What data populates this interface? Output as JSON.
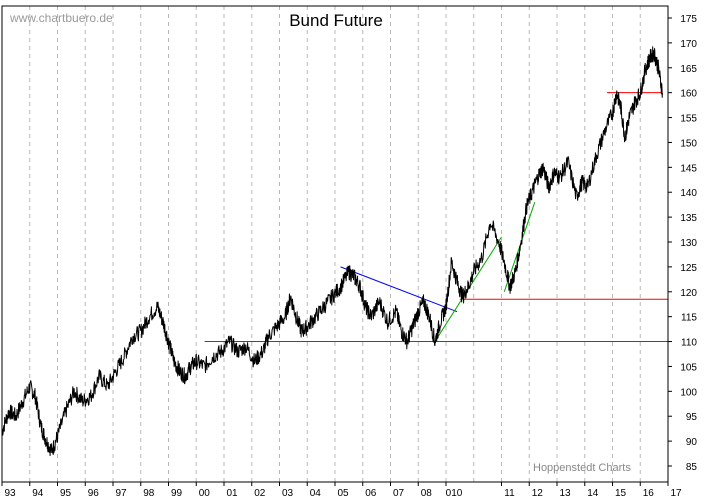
{
  "watermark": "www.chartbuero.de",
  "credit": "Hoppenstedt Charts",
  "chart_data": {
    "type": "line",
    "title": "Bund Future",
    "xlabel": "",
    "ylabel": "",
    "xlim": [
      1993.0,
      2017.0
    ],
    "ylim": [
      82,
      178
    ],
    "y_axis_position": "right",
    "grid": "vertical dashed at each year",
    "yticks": [
      85,
      90,
      95,
      100,
      105,
      110,
      115,
      120,
      125,
      130,
      135,
      140,
      145,
      150,
      155,
      160,
      165,
      170,
      175
    ],
    "xtick_labels": [
      {
        "year": 1993,
        "label": "93"
      },
      {
        "year": 1994,
        "label": "94"
      },
      {
        "year": 1995,
        "label": "95"
      },
      {
        "year": 1996,
        "label": "96"
      },
      {
        "year": 1997,
        "label": "97"
      },
      {
        "year": 1998,
        "label": "98"
      },
      {
        "year": 1999,
        "label": "99"
      },
      {
        "year": 2000,
        "label": "00"
      },
      {
        "year": 2001,
        "label": "01"
      },
      {
        "year": 2002,
        "label": "02"
      },
      {
        "year": 2003,
        "label": "03"
      },
      {
        "year": 2004,
        "label": "04"
      },
      {
        "year": 2005,
        "label": "05"
      },
      {
        "year": 2006,
        "label": "06"
      },
      {
        "year": 2007,
        "label": "07"
      },
      {
        "year": 2008,
        "label": "08"
      },
      {
        "year": 2009,
        "label": "010"
      },
      {
        "year": 2011,
        "label": "11"
      },
      {
        "year": 2012,
        "label": "12"
      },
      {
        "year": 2013,
        "label": "13"
      },
      {
        "year": 2014,
        "label": "14"
      },
      {
        "year": 2015,
        "label": "15"
      },
      {
        "year": 2016,
        "label": "16"
      },
      {
        "year": 2017,
        "label": "17"
      }
    ],
    "series": [
      {
        "color": "#000000",
        "x": [
          1993.0,
          1993.25,
          1993.5,
          1993.75,
          1994.0,
          1994.2,
          1994.4,
          1994.6,
          1994.8,
          1995.0,
          1995.3,
          1995.6,
          1995.9,
          1996.2,
          1996.5,
          1996.8,
          1997.1,
          1997.4,
          1997.7,
          1998.0,
          1998.3,
          1998.6,
          1998.8,
          1999.0,
          1999.2,
          1999.4,
          1999.6,
          1999.8,
          2000.0,
          2000.3,
          2000.6,
          2000.9,
          2001.2,
          2001.5,
          2001.8,
          2002.1,
          2002.4,
          2002.6,
          2002.9,
          2003.2,
          2003.4,
          2003.6,
          2003.8,
          2004.0,
          2004.3,
          2004.6,
          2004.9,
          2005.2,
          2005.5,
          2005.7,
          2005.9,
          2006.1,
          2006.3,
          2006.6,
          2006.9,
          2007.2,
          2007.4,
          2007.6,
          2007.8,
          2008.0,
          2008.2,
          2008.4,
          2008.6,
          2008.8,
          2009.0,
          2009.2,
          2009.4,
          2009.6,
          2009.8,
          2010.0,
          2010.3,
          2010.6,
          2010.9,
          2011.1,
          2011.3,
          2011.5,
          2011.7,
          2011.9,
          2012.1,
          2012.3,
          2012.5,
          2012.7,
          2012.9,
          2013.1,
          2013.4,
          2013.7,
          2013.9,
          2014.1,
          2014.4,
          2014.7,
          2015.0,
          2015.15,
          2015.3,
          2015.45,
          2015.6,
          2015.8,
          2016.0,
          2016.2,
          2016.35,
          2016.5,
          2016.65,
          2016.8
        ],
        "y": [
          92,
          96,
          95,
          98,
          101,
          99,
          93,
          90,
          88,
          91,
          96,
          100,
          98,
          99,
          103,
          101,
          104,
          107,
          111,
          112,
          115,
          117,
          114,
          110,
          106,
          104,
          103,
          105,
          106,
          105,
          107,
          108,
          110,
          108,
          109,
          106,
          108,
          111,
          113,
          115,
          119,
          115,
          112,
          113,
          115,
          117,
          119,
          121,
          124,
          123,
          121,
          117,
          115,
          118,
          114,
          116,
          112,
          110,
          113,
          116,
          118,
          115,
          110,
          114,
          117,
          126,
          122,
          119,
          121,
          124,
          127,
          134,
          130,
          126,
          121,
          124,
          130,
          137,
          140,
          143,
          145,
          141,
          144,
          143,
          146,
          139,
          142,
          141,
          147,
          152,
          156,
          160,
          157,
          151,
          155,
          158,
          160,
          165,
          167,
          168,
          165,
          160
        ]
      }
    ],
    "trendlines": [
      {
        "color": "#ff0000",
        "x": [
          2000.3,
          2017.0
        ],
        "y": [
          110,
          110
        ]
      },
      {
        "color": "#ff0000",
        "x": [
          2009.5,
          2017.0
        ],
        "y": [
          118.5,
          118.5
        ]
      },
      {
        "color": "#ff0000",
        "x": [
          2014.8,
          2016.8
        ],
        "y": [
          160,
          160
        ]
      },
      {
        "color": "#0000ff",
        "x": [
          2005.2,
          2009.4
        ],
        "y": [
          125,
          116
        ]
      },
      {
        "color": "#00aa00",
        "x": [
          2008.6,
          2011.0
        ],
        "y": [
          110,
          131
        ]
      },
      {
        "color": "#00aa00",
        "x": [
          2011.1,
          2012.2
        ],
        "y": [
          120,
          138
        ]
      }
    ]
  }
}
